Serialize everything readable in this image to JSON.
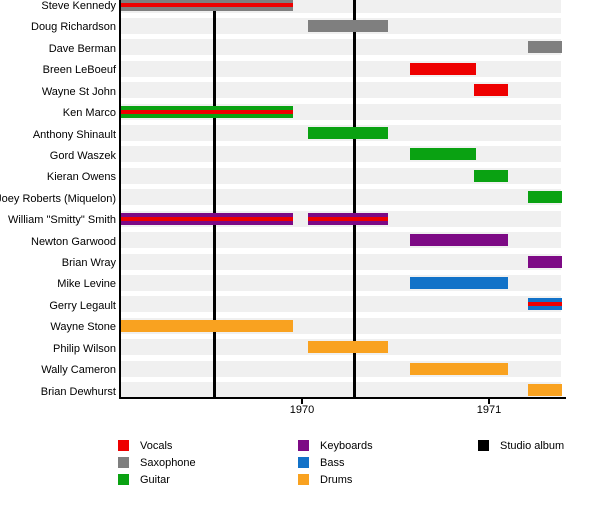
{
  "palette": {
    "Vocals": "#ee0000",
    "Saxophone": "#7f7f7f",
    "Guitar": "#0aa212",
    "Keyboards": "#7d0a85",
    "Bass": "#1272c8",
    "Drums": "#f9a220",
    "Studio album": "#000000"
  },
  "legend": {
    "columns": [
      {
        "items": [
          {
            "label": "Vocals",
            "color": "#ee0000"
          },
          {
            "label": "Saxophone",
            "color": "#7f7f7f"
          },
          {
            "label": "Guitar",
            "color": "#0aa212"
          }
        ]
      },
      {
        "items": [
          {
            "label": "Keyboards",
            "color": "#7d0a85"
          },
          {
            "label": "Bass",
            "color": "#1272c8"
          },
          {
            "label": "Drums",
            "color": "#f9a220"
          }
        ]
      },
      {
        "items": [
          {
            "label": "Studio album",
            "color": "#000000"
          }
        ]
      }
    ]
  },
  "chart_data": {
    "type": "bar",
    "subtype": "horizontal-timeline-gantt",
    "title": "",
    "x_axis": {
      "range": [
        1969.03,
        1971.39
      ],
      "ticks": [
        1970,
        1971
      ],
      "tick_labels": [
        "1970",
        "1971"
      ]
    },
    "studio_albums": [
      1969.53,
      1970.28
    ],
    "members": [
      {
        "name": "Steve Kennedy",
        "instrument": "Saxophone",
        "also": "Vocals",
        "segments": [
          [
            1969.03,
            1969.95
          ]
        ]
      },
      {
        "name": "Doug Richardson",
        "instrument": "Saxophone",
        "segments": [
          [
            1970.03,
            1970.46
          ]
        ]
      },
      {
        "name": "Dave Berman",
        "instrument": "Saxophone",
        "segments": [
          [
            1971.21,
            1971.39
          ]
        ]
      },
      {
        "name": "Breen LeBoeuf",
        "instrument": "Vocals",
        "segments": [
          [
            1970.58,
            1970.93
          ]
        ]
      },
      {
        "name": "Wayne St John",
        "instrument": "Vocals",
        "segments": [
          [
            1970.92,
            1971.1
          ]
        ]
      },
      {
        "name": "Ken Marco",
        "instrument": "Guitar",
        "also": "Vocals",
        "segments": [
          [
            1969.03,
            1969.95
          ]
        ]
      },
      {
        "name": "Anthony Shinault",
        "instrument": "Guitar",
        "segments": [
          [
            1970.03,
            1970.46
          ]
        ]
      },
      {
        "name": "Gord Waszek",
        "instrument": "Guitar",
        "segments": [
          [
            1970.58,
            1970.93
          ]
        ]
      },
      {
        "name": "Kieran Owens",
        "instrument": "Guitar",
        "segments": [
          [
            1970.92,
            1971.1
          ]
        ]
      },
      {
        "name": "Joey Roberts (Miquelon)",
        "instrument": "Guitar",
        "segments": [
          [
            1971.21,
            1971.39
          ]
        ]
      },
      {
        "name": "William \"Smitty\" Smith",
        "instrument": "Keyboards",
        "also": "Vocals",
        "segments": [
          [
            1969.03,
            1969.95
          ],
          [
            1970.03,
            1970.46
          ]
        ]
      },
      {
        "name": "Newton Garwood",
        "instrument": "Keyboards",
        "segments": [
          [
            1970.58,
            1971.1
          ]
        ]
      },
      {
        "name": "Brian Wray",
        "instrument": "Keyboards",
        "segments": [
          [
            1971.21,
            1971.39
          ]
        ]
      },
      {
        "name": "Mike Levine",
        "instrument": "Bass",
        "segments": [
          [
            1970.58,
            1971.1
          ]
        ]
      },
      {
        "name": "Gerry Legault",
        "instrument": "Bass",
        "also": "Vocals",
        "segments": [
          [
            1971.21,
            1971.39
          ]
        ]
      },
      {
        "name": "Wayne Stone",
        "instrument": "Drums",
        "segments": [
          [
            1969.03,
            1969.95
          ]
        ]
      },
      {
        "name": "Philip Wilson",
        "instrument": "Drums",
        "segments": [
          [
            1970.03,
            1970.46
          ]
        ]
      },
      {
        "name": "Wally Cameron",
        "instrument": "Drums",
        "segments": [
          [
            1970.58,
            1971.1
          ]
        ]
      },
      {
        "name": "Brian Dewhurst",
        "instrument": "Drums",
        "segments": [
          [
            1971.21,
            1971.39
          ]
        ]
      }
    ]
  }
}
